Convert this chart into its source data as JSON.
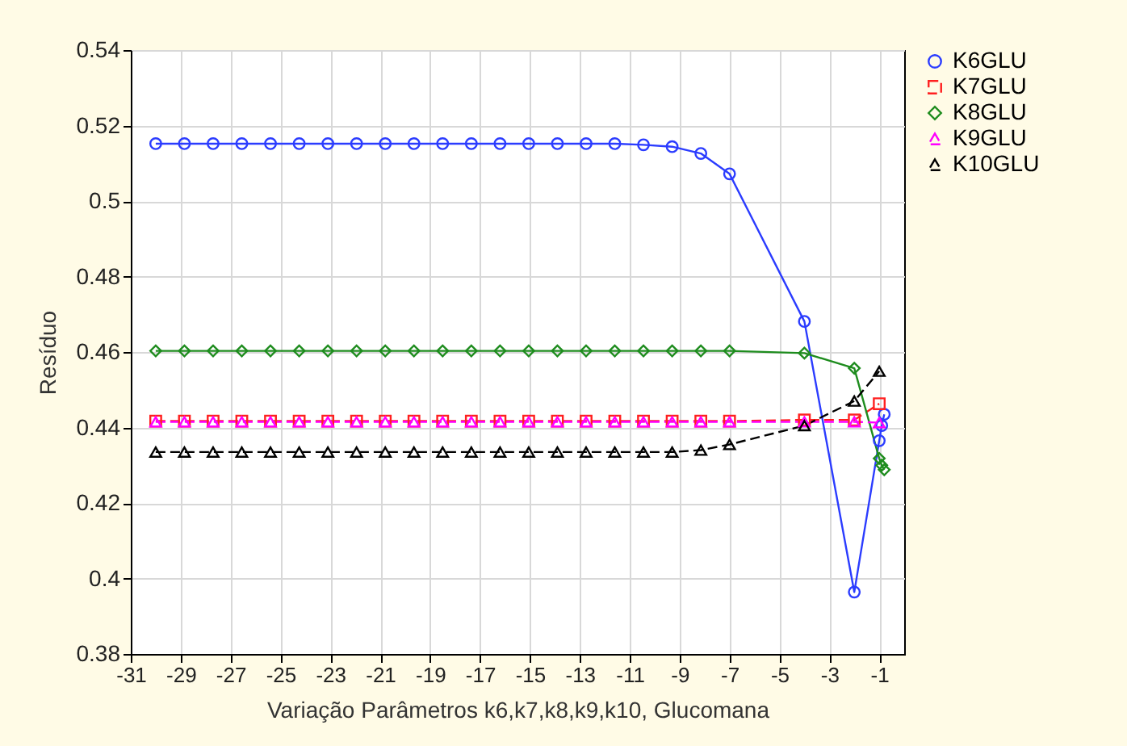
{
  "chart_data": {
    "type": "line",
    "xlabel": "Variação Parâmetros k6,k7,k8,k9,k10, Glucomana",
    "ylabel": "Resíduo",
    "xlim": [
      -31,
      0
    ],
    "xticks": [
      -31,
      -29,
      -27,
      -25,
      -23,
      -21,
      -19,
      -17,
      -15,
      -13,
      -11,
      -9,
      -7,
      -5,
      -3,
      -1
    ],
    "ylim": [
      0.38,
      0.54
    ],
    "yticks": [
      0.38,
      0.4,
      0.42,
      0.44,
      0.46,
      0.48,
      0.5,
      0.52,
      0.54
    ],
    "grid": true,
    "legend": "right",
    "series": [
      {
        "name": "K6GLU",
        "color": "#2b3cff",
        "marker": "circle",
        "line_style": "solid",
        "x": [
          -30,
          -28.85,
          -27.7,
          -26.55,
          -25.4,
          -24.25,
          -23.1,
          -21.95,
          -20.8,
          -19.65,
          -18.5,
          -17.35,
          -16.2,
          -15.05,
          -13.9,
          -12.75,
          -11.6,
          -10.45,
          -9.3,
          -8.15,
          -7,
          -4,
          -2,
          -1,
          -0.9,
          -0.8
        ],
        "values": [
          0.5152,
          0.5152,
          0.5152,
          0.5152,
          0.5152,
          0.5152,
          0.5152,
          0.5152,
          0.5152,
          0.5152,
          0.5152,
          0.5152,
          0.5152,
          0.5152,
          0.5152,
          0.5152,
          0.5152,
          0.5149,
          0.5144,
          0.5126,
          0.5072,
          0.4681,
          0.3964,
          0.4365,
          0.4405,
          0.4435
        ]
      },
      {
        "name": "K7GLU",
        "color": "#ff2020",
        "marker": "square",
        "line_style": "dashed",
        "x": [
          -30,
          -28.85,
          -27.7,
          -26.55,
          -25.4,
          -24.25,
          -23.1,
          -21.95,
          -20.8,
          -19.65,
          -18.5,
          -17.35,
          -16.2,
          -15.05,
          -13.9,
          -12.75,
          -11.6,
          -10.45,
          -9.3,
          -8.15,
          -7,
          -4,
          -2,
          -1
        ],
        "values": [
          0.4417,
          0.4417,
          0.4417,
          0.4417,
          0.4417,
          0.4417,
          0.4417,
          0.4417,
          0.4417,
          0.4417,
          0.4417,
          0.4417,
          0.4417,
          0.4417,
          0.4417,
          0.4417,
          0.4417,
          0.4417,
          0.4417,
          0.4417,
          0.4417,
          0.442,
          0.442,
          0.4463
        ]
      },
      {
        "name": "K8GLU",
        "color": "#1e8c1e",
        "marker": "diamond",
        "line_style": "solid",
        "x": [
          -30,
          -28.85,
          -27.7,
          -26.55,
          -25.4,
          -24.25,
          -23.1,
          -21.95,
          -20.8,
          -19.65,
          -18.5,
          -17.35,
          -16.2,
          -15.05,
          -13.9,
          -12.75,
          -11.6,
          -10.45,
          -9.3,
          -8.15,
          -7,
          -4,
          -2,
          -1,
          -0.9,
          -0.8
        ],
        "values": [
          0.4603,
          0.4603,
          0.4603,
          0.4603,
          0.4603,
          0.4603,
          0.4603,
          0.4603,
          0.4603,
          0.4603,
          0.4603,
          0.4603,
          0.4603,
          0.4603,
          0.4603,
          0.4603,
          0.4603,
          0.4603,
          0.4603,
          0.4603,
          0.4603,
          0.4597,
          0.4557,
          0.4318,
          0.43,
          0.4288
        ]
      },
      {
        "name": "K9GLU",
        "color": "#ff00ff",
        "marker": "triangle",
        "line_style": "dashed",
        "x": [
          -30,
          -28.85,
          -27.7,
          -26.55,
          -25.4,
          -24.25,
          -23.1,
          -21.95,
          -20.8,
          -19.65,
          -18.5,
          -17.35,
          -16.2,
          -15.05,
          -13.9,
          -12.75,
          -11.6,
          -10.45,
          -9.3,
          -8.15,
          -7,
          -4,
          -2,
          -1
        ],
        "values": [
          0.4415,
          0.4415,
          0.4415,
          0.4415,
          0.4415,
          0.4415,
          0.4415,
          0.4415,
          0.4415,
          0.4415,
          0.4415,
          0.4415,
          0.4415,
          0.4415,
          0.4415,
          0.4415,
          0.4415,
          0.4415,
          0.4415,
          0.4415,
          0.4415,
          0.4415,
          0.4415,
          0.4413
        ]
      },
      {
        "name": "K10GLU",
        "color": "#000000",
        "marker": "triangle",
        "line_style": "dashed",
        "x": [
          -30,
          -28.85,
          -27.7,
          -26.55,
          -25.4,
          -24.25,
          -23.1,
          -21.95,
          -20.8,
          -19.65,
          -18.5,
          -17.35,
          -16.2,
          -15.05,
          -13.9,
          -12.75,
          -11.6,
          -10.45,
          -9.3,
          -8.15,
          -7,
          -4,
          -2,
          -1
        ],
        "values": [
          0.4335,
          0.4335,
          0.4335,
          0.4335,
          0.4335,
          0.4335,
          0.4335,
          0.4335,
          0.4335,
          0.4335,
          0.4335,
          0.4335,
          0.4335,
          0.4335,
          0.4335,
          0.4335,
          0.4335,
          0.4335,
          0.4335,
          0.434,
          0.4355,
          0.4405,
          0.447,
          0.4549
        ]
      }
    ]
  }
}
